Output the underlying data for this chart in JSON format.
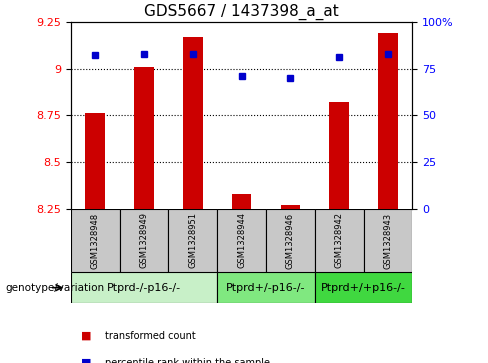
{
  "title": "GDS5667 / 1437398_a_at",
  "samples": [
    "GSM1328948",
    "GSM1328949",
    "GSM1328951",
    "GSM1328944",
    "GSM1328946",
    "GSM1328942",
    "GSM1328943"
  ],
  "bar_values": [
    8.76,
    9.01,
    9.17,
    8.33,
    8.27,
    8.82,
    9.19
  ],
  "bar_bottom": 8.25,
  "percentile_values": [
    82,
    83,
    83,
    71,
    70,
    81,
    83
  ],
  "percentile_scale_max": 100,
  "groups": [
    {
      "label": "Ptprd-/-p16-/-",
      "start": 0,
      "end": 3,
      "color": "#c8f0c8"
    },
    {
      "label": "Ptprd+/-p16-/-",
      "start": 3,
      "end": 5,
      "color": "#80e880"
    },
    {
      "label": "Ptprd+/+p16-/-",
      "start": 5,
      "end": 7,
      "color": "#40d840"
    }
  ],
  "ylim_left": [
    8.25,
    9.25
  ],
  "ylim_right": [
    0,
    100
  ],
  "yticks_left": [
    8.25,
    8.5,
    8.75,
    9.0,
    9.25
  ],
  "yticks_right": [
    0,
    25,
    50,
    75,
    100
  ],
  "ytick_labels_left": [
    "8.25",
    "8.5",
    "8.75",
    "9",
    "9.25"
  ],
  "ytick_labels_right": [
    "0",
    "25",
    "50",
    "75",
    "100%"
  ],
  "bar_color": "#cc0000",
  "percentile_color": "#0000cc",
  "bar_width": 0.4,
  "percentile_marker_size": 5,
  "grid_color": "#000000",
  "label_area_color": "#c8c8c8",
  "genotype_label": "genotype/variation",
  "legend_bar_label": "transformed count",
  "legend_pct_label": "percentile rank within the sample",
  "title_fontsize": 11,
  "tick_fontsize": 8,
  "sample_fontsize": 6,
  "group_fontsize": 8
}
